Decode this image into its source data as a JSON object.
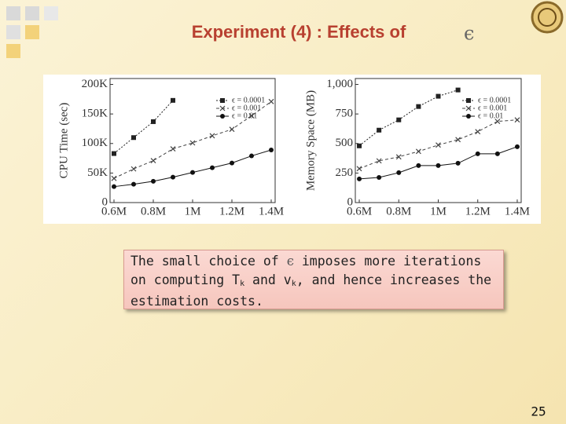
{
  "title": "Experiment (4) : Effects of",
  "title_symbol": "ϵ",
  "note": {
    "parts": [
      "The small choice of ",
      "ϵ",
      " imposes more iterations on computing T",
      "k",
      " and v",
      "k",
      ", and hence increases the estimation costs."
    ]
  },
  "page_number": "25",
  "chart_data": [
    {
      "type": "line",
      "y_label": "CPU Time (sec)",
      "x": [
        0.6,
        0.7,
        0.8,
        0.9,
        1.0,
        1.1,
        1.2,
        1.3,
        1.4
      ],
      "xlim": [
        0.58,
        1.42
      ],
      "xticks": [
        {
          "value": 0.6,
          "label": "0.6M"
        },
        {
          "value": 0.8,
          "label": "0.8M"
        },
        {
          "value": 1.0,
          "label": "1M"
        },
        {
          "value": 1.2,
          "label": "1.2M"
        },
        {
          "value": 1.4,
          "label": "1.4M"
        }
      ],
      "ylim": [
        0,
        210000
      ],
      "yticks": [
        0,
        {
          "value": 50000,
          "label": "50K"
        },
        {
          "value": 100000,
          "label": "100K"
        },
        {
          "value": 150000,
          "label": "150K"
        },
        {
          "value": 200000,
          "label": "200K"
        }
      ],
      "legend": "top-right",
      "series": [
        {
          "name": "ϵ = 0.0001",
          "color": "#222222",
          "values": [
            83000,
            110000,
            137000,
            173000,
            null,
            null,
            null,
            null,
            null
          ]
        },
        {
          "name": "ϵ = 0.001",
          "color": "#444444",
          "values": [
            41000,
            57000,
            71000,
            91000,
            101000,
            113000,
            124000,
            147000,
            171000
          ]
        },
        {
          "name": "ϵ = 0.01",
          "color": "#111111",
          "values": [
            27000,
            31000,
            36000,
            43000,
            51000,
            59000,
            67000,
            79000,
            89000
          ]
        }
      ]
    },
    {
      "type": "line",
      "y_label": "Memory Space (MB)",
      "x": [
        0.6,
        0.7,
        0.8,
        0.9,
        1.0,
        1.1,
        1.2,
        1.3,
        1.4
      ],
      "xlim": [
        0.58,
        1.42
      ],
      "xticks": [
        {
          "value": 0.6,
          "label": "0.6M"
        },
        {
          "value": 0.8,
          "label": "0.8M"
        },
        {
          "value": 1.0,
          "label": "1M"
        },
        {
          "value": 1.2,
          "label": "1.2M"
        },
        {
          "value": 1.4,
          "label": "1.4M"
        }
      ],
      "ylim": [
        0,
        1050
      ],
      "yticks": [
        0,
        250,
        500,
        750,
        {
          "value": 1000,
          "label": "1,000"
        }
      ],
      "legend": "top-right",
      "series": [
        {
          "name": "ϵ = 0.0001",
          "color": "#222222",
          "values": [
            480,
            613,
            700,
            813,
            900,
            953,
            null,
            null,
            null
          ]
        },
        {
          "name": "ϵ = 0.001",
          "color": "#444444",
          "values": [
            287,
            353,
            387,
            433,
            487,
            533,
            600,
            687,
            700
          ]
        },
        {
          "name": "ϵ = 0.01",
          "color": "#111111",
          "values": [
            200,
            213,
            253,
            313,
            313,
            333,
            413,
            413,
            473
          ]
        }
      ]
    }
  ]
}
